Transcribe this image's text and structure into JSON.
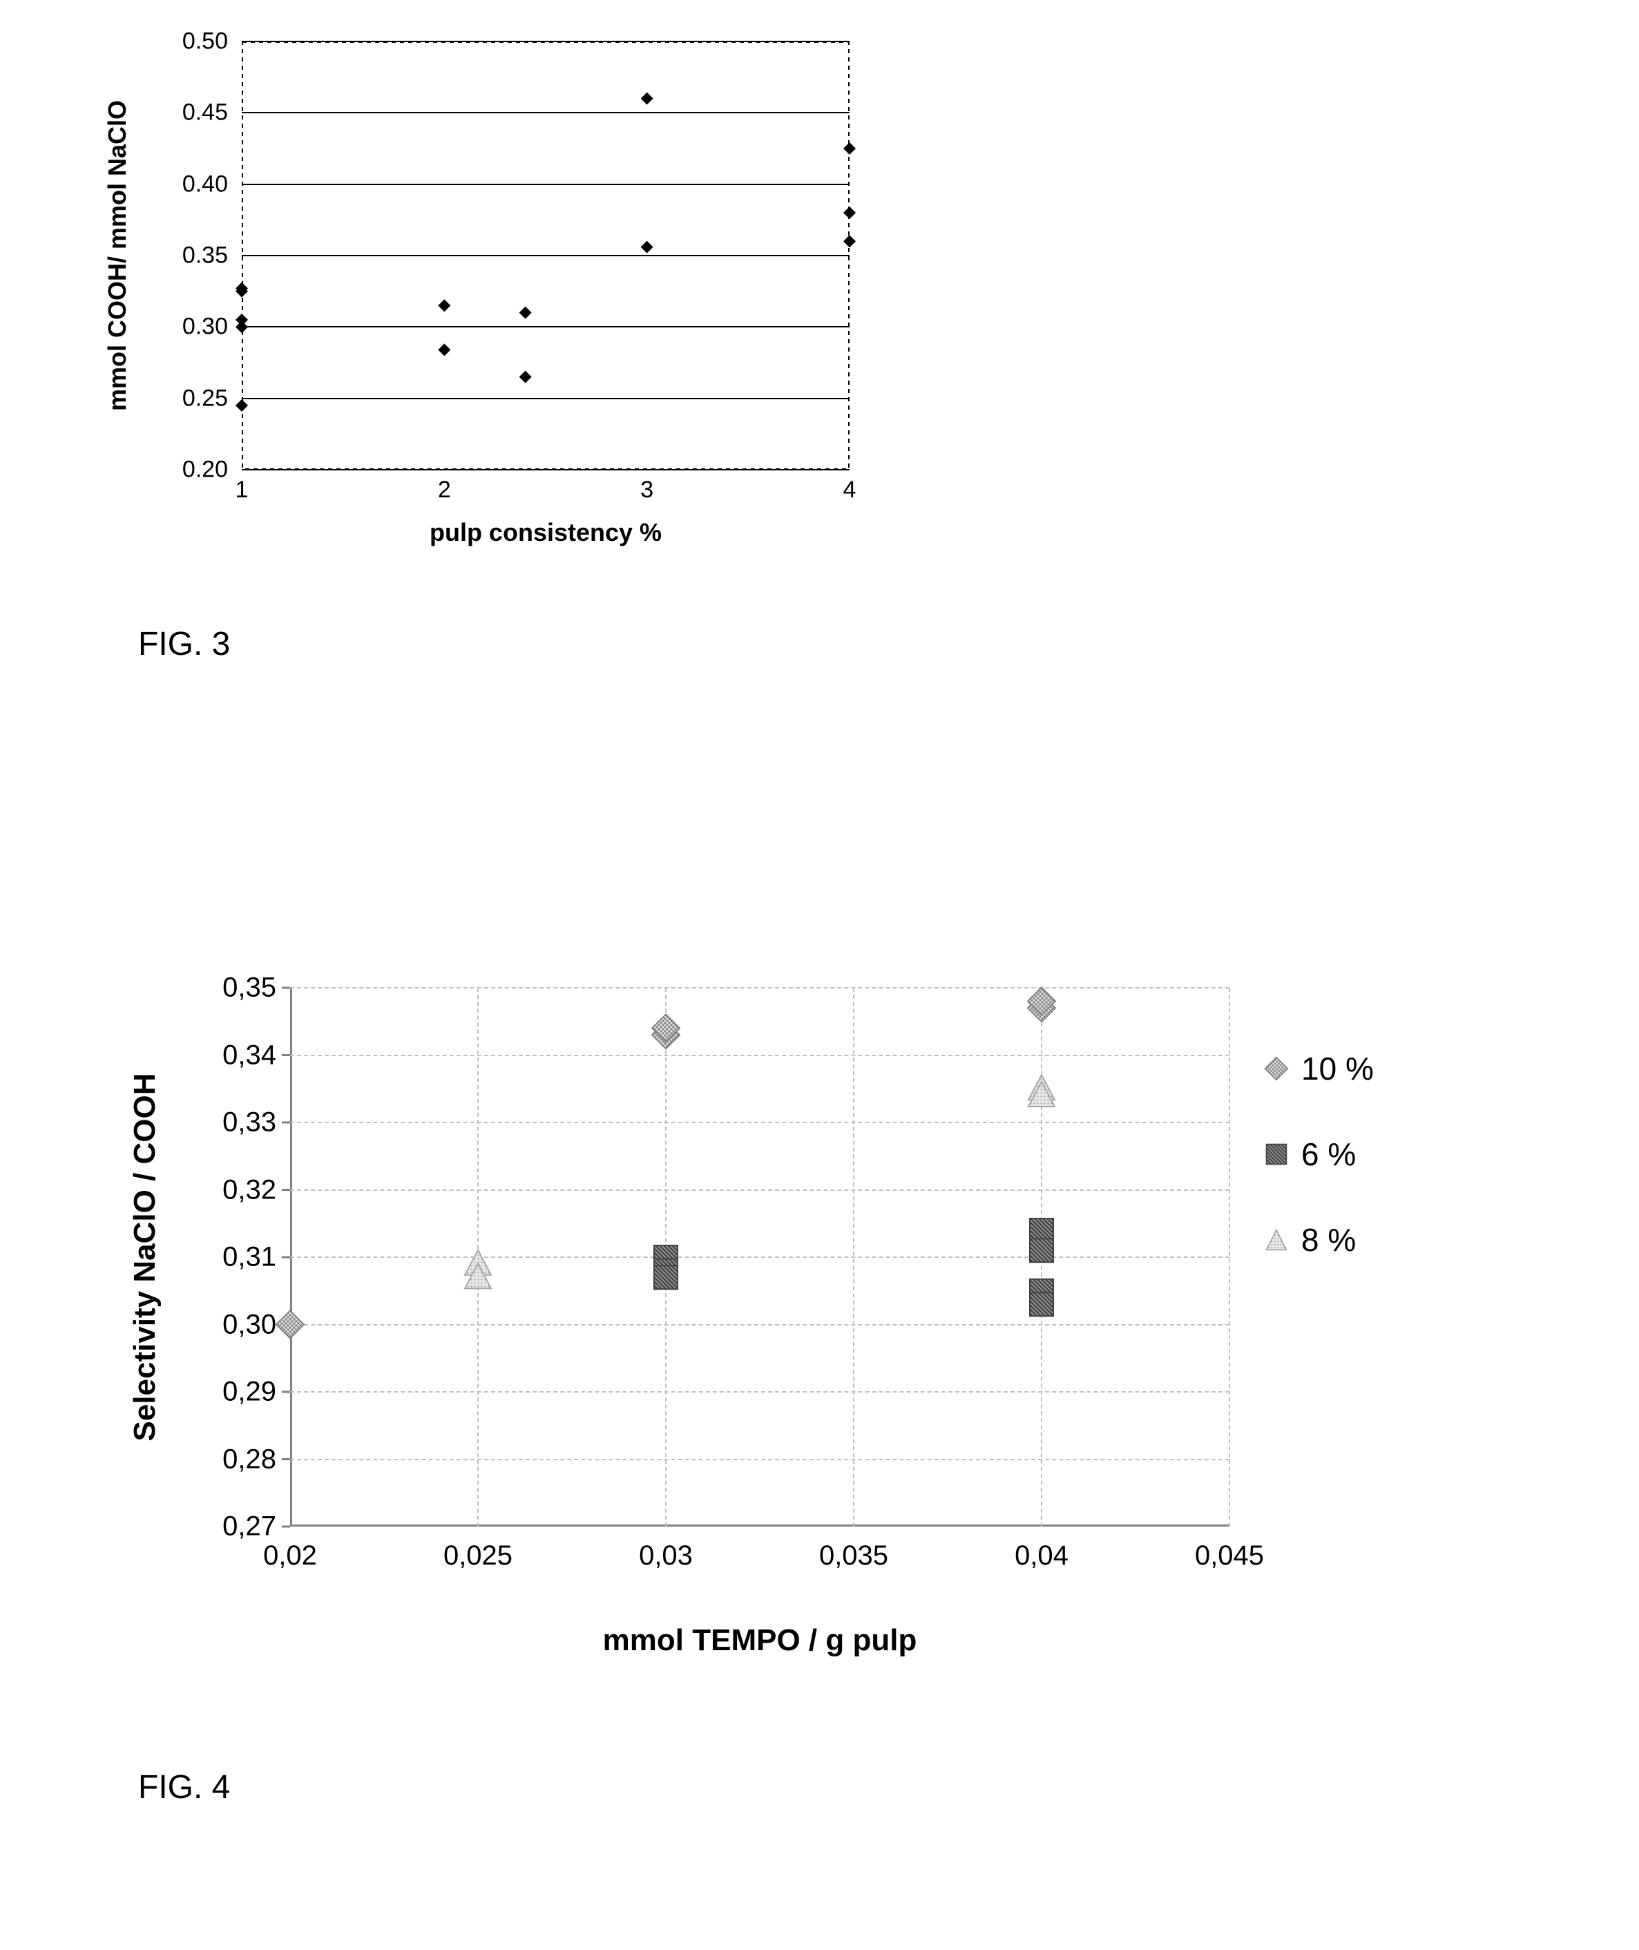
{
  "fig3_label": "FIG. 3",
  "fig4_label": "FIG. 4",
  "chart1": {
    "type": "scatter",
    "xlabel": "pulp consistency %",
    "ylabel": "mmol COOH/ mmol NaClO",
    "xlim": [
      1,
      4
    ],
    "ylim": [
      0.2,
      0.5
    ],
    "ytick_labels": [
      "0.20",
      "0.25",
      "0.30",
      "0.35",
      "0.40",
      "0.45",
      "0.50"
    ],
    "ytick_values": [
      0.2,
      0.25,
      0.3,
      0.35,
      0.4,
      0.45,
      0.5
    ],
    "xtick_labels": [
      "1",
      "2",
      "3",
      "4"
    ],
    "xtick_values": [
      1,
      2,
      3,
      4
    ],
    "tick_fontsize": 34,
    "label_fontsize": 36,
    "grid_color": "#000000",
    "border_style": "dashed",
    "border_color": "#000000",
    "background_color": "#ffffff",
    "marker_color": "#000000",
    "marker_size": 18,
    "points": [
      {
        "x": 1.0,
        "y": 0.327
      },
      {
        "x": 1.0,
        "y": 0.325
      },
      {
        "x": 1.0,
        "y": 0.305
      },
      {
        "x": 1.0,
        "y": 0.3
      },
      {
        "x": 1.0,
        "y": 0.245
      },
      {
        "x": 2.0,
        "y": 0.315
      },
      {
        "x": 2.0,
        "y": 0.284
      },
      {
        "x": 2.4,
        "y": 0.31
      },
      {
        "x": 2.4,
        "y": 0.265
      },
      {
        "x": 3.0,
        "y": 0.46
      },
      {
        "x": 3.0,
        "y": 0.356
      },
      {
        "x": 4.0,
        "y": 0.425
      },
      {
        "x": 4.0,
        "y": 0.38
      },
      {
        "x": 4.0,
        "y": 0.36
      }
    ]
  },
  "chart2": {
    "type": "scatter",
    "xlabel": "mmol TEMPO   / g pulp",
    "ylabel": "Selectivity NaClO / COOH",
    "xlim": [
      0.02,
      0.045
    ],
    "ylim": [
      0.27,
      0.35
    ],
    "ytick_labels": [
      "0,27",
      "0,28",
      "0,29",
      "0,30",
      "0,31",
      "0,32",
      "0,33",
      "0,34",
      "0,35"
    ],
    "ytick_values": [
      0.27,
      0.28,
      0.29,
      0.3,
      0.31,
      0.32,
      0.33,
      0.34,
      0.35
    ],
    "xtick_labels": [
      "0,02",
      "0,025",
      "0,03",
      "0,035",
      "0,04",
      "0,045"
    ],
    "xtick_values": [
      0.02,
      0.025,
      0.03,
      0.035,
      0.04,
      0.045
    ],
    "tick_fontsize": 40,
    "label_fontsize": 44,
    "grid_color": "#bfbfbf",
    "grid_style": "dashed",
    "axis_color": "#808080",
    "background_color": "#ffffff",
    "marker_size": 40,
    "series": [
      {
        "name": "10 %",
        "marker": "diamond",
        "pattern": "crosshatch",
        "color": "#a6a6a6",
        "edge": "#7f7f7f",
        "points": [
          {
            "x": 0.02,
            "y": 0.3
          },
          {
            "x": 0.03,
            "y": 0.343
          },
          {
            "x": 0.03,
            "y": 0.344
          },
          {
            "x": 0.04,
            "y": 0.347
          },
          {
            "x": 0.04,
            "y": 0.348
          }
        ]
      },
      {
        "name": "6 %",
        "marker": "square",
        "pattern": "diag",
        "color": "#595959",
        "edge": "#404040",
        "points": [
          {
            "x": 0.03,
            "y": 0.31
          },
          {
            "x": 0.03,
            "y": 0.308
          },
          {
            "x": 0.03,
            "y": 0.307
          },
          {
            "x": 0.04,
            "y": 0.314
          },
          {
            "x": 0.04,
            "y": 0.311
          },
          {
            "x": 0.04,
            "y": 0.305
          },
          {
            "x": 0.04,
            "y": 0.303
          }
        ]
      },
      {
        "name": "8 %",
        "marker": "triangle",
        "pattern": "dots",
        "color": "#bfbfbf",
        "edge": "#a6a6a6",
        "points": [
          {
            "x": 0.025,
            "y": 0.309
          },
          {
            "x": 0.025,
            "y": 0.307
          },
          {
            "x": 0.04,
            "y": 0.335
          },
          {
            "x": 0.04,
            "y": 0.334
          }
        ]
      }
    ],
    "legend": [
      "10 %",
      "6 %",
      "8 %"
    ]
  }
}
